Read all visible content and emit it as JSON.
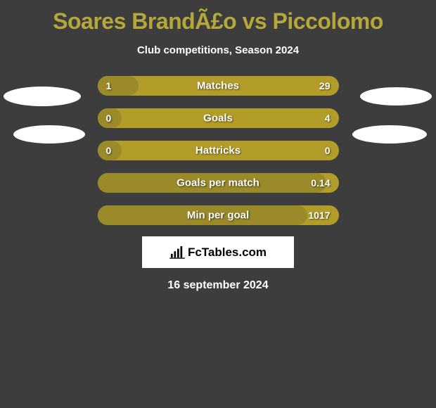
{
  "title": "Soares BrandÃ£o vs Piccolomo",
  "subtitle": "Club competitions, Season 2024",
  "date": "16 september 2024",
  "logo_text": "FcTables.com",
  "colors": {
    "background": "#3d3d3d",
    "accent": "#b5a73a",
    "bar_bg": "#b29d2a",
    "bar_fill": "#9a8a29",
    "white": "#ffffff"
  },
  "bars": [
    {
      "label": "Matches",
      "left": "1",
      "right": "29",
      "fill_pct": 17
    },
    {
      "label": "Goals",
      "left": "0",
      "right": "4",
      "fill_pct": 10
    },
    {
      "label": "Hattricks",
      "left": "0",
      "right": "0",
      "fill_pct": 10
    },
    {
      "label": "Goals per match",
      "left": "",
      "right": "0.14",
      "fill_pct": 95
    },
    {
      "label": "Min per goal",
      "left": "",
      "right": "1017",
      "fill_pct": 87
    }
  ]
}
